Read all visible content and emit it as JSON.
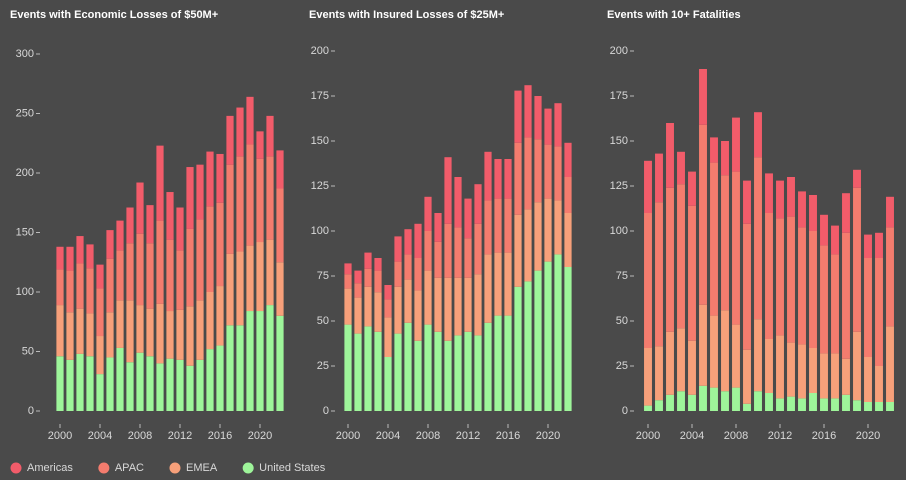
{
  "chart_data": [
    {
      "type": "bar",
      "stacked": true,
      "title": "Events with Economic Losses of $50M+",
      "x": [
        2000,
        2001,
        2002,
        2003,
        2004,
        2005,
        2006,
        2007,
        2008,
        2009,
        2010,
        2011,
        2012,
        2013,
        2014,
        2015,
        2016,
        2017,
        2018,
        2019,
        2020,
        2021,
        2022
      ],
      "xticks": [
        2000,
        2004,
        2008,
        2012,
        2016,
        2020
      ],
      "ylim": [
        0,
        300
      ],
      "yticks": [
        0,
        50,
        100,
        150,
        200,
        250,
        300
      ],
      "series": [
        {
          "name": "United States",
          "color": "#9ef59a",
          "values": [
            46,
            43,
            48,
            46,
            31,
            45,
            53,
            41,
            49,
            46,
            40,
            44,
            43,
            38,
            43,
            52,
            55,
            72,
            72,
            84,
            84,
            89,
            80
          ]
        },
        {
          "name": "EMEA",
          "color": "#f7a07a",
          "values": [
            43,
            40,
            38,
            36,
            32,
            38,
            40,
            52,
            40,
            40,
            50,
            40,
            42,
            50,
            50,
            48,
            50,
            60,
            62,
            55,
            58,
            55,
            45
          ]
        },
        {
          "name": "APAC",
          "color": "#f47c6e",
          "values": [
            30,
            35,
            38,
            38,
            40,
            45,
            42,
            48,
            60,
            55,
            70,
            60,
            50,
            65,
            68,
            72,
            70,
            75,
            80,
            85,
            70,
            70,
            62
          ]
        },
        {
          "name": "Americas",
          "color": "#f25c6a",
          "values": [
            19,
            20,
            23,
            20,
            20,
            24,
            25,
            30,
            43,
            32,
            63,
            40,
            36,
            52,
            46,
            46,
            41,
            41,
            41,
            40,
            23,
            34,
            32
          ]
        }
      ]
    },
    {
      "type": "bar",
      "stacked": true,
      "title": "Events with Insured Losses of $25M+",
      "x": [
        2000,
        2001,
        2002,
        2003,
        2004,
        2005,
        2006,
        2007,
        2008,
        2009,
        2010,
        2011,
        2012,
        2013,
        2014,
        2015,
        2016,
        2017,
        2018,
        2019,
        2020,
        2021,
        2022
      ],
      "xticks": [
        2000,
        2004,
        2008,
        2012,
        2016,
        2020
      ],
      "ylim": [
        0,
        200
      ],
      "yticks": [
        0,
        25,
        50,
        75,
        100,
        125,
        150,
        175,
        200
      ],
      "series": [
        {
          "name": "United States",
          "color": "#9ef59a",
          "values": [
            48,
            43,
            47,
            44,
            30,
            43,
            49,
            39,
            48,
            44,
            39,
            42,
            44,
            42,
            49,
            53,
            53,
            69,
            72,
            78,
            83,
            87,
            80
          ]
        },
        {
          "name": "EMEA",
          "color": "#f7a07a",
          "values": [
            20,
            20,
            22,
            22,
            22,
            26,
            24,
            28,
            30,
            30,
            35,
            32,
            30,
            34,
            38,
            35,
            35,
            40,
            40,
            38,
            35,
            30,
            30
          ]
        },
        {
          "name": "APAC",
          "color": "#f47c6e",
          "values": [
            8,
            8,
            10,
            12,
            10,
            14,
            14,
            18,
            22,
            20,
            30,
            28,
            22,
            28,
            30,
            30,
            30,
            40,
            40,
            35,
            30,
            30,
            20
          ]
        },
        {
          "name": "Americas",
          "color": "#f25c6a",
          "values": [
            6,
            7,
            9,
            7,
            8,
            14,
            14,
            19,
            19,
            16,
            37,
            28,
            22,
            22,
            27,
            22,
            22,
            29,
            29,
            24,
            20,
            24,
            19
          ]
        }
      ]
    },
    {
      "type": "bar",
      "stacked": true,
      "title": "Events with 10+ Fatalities",
      "x": [
        2000,
        2001,
        2002,
        2003,
        2004,
        2005,
        2006,
        2007,
        2008,
        2009,
        2010,
        2011,
        2012,
        2013,
        2014,
        2015,
        2016,
        2017,
        2018,
        2019,
        2020,
        2021,
        2022
      ],
      "xticks": [
        2000,
        2004,
        2008,
        2012,
        2016,
        2020
      ],
      "ylim": [
        0,
        200
      ],
      "yticks": [
        0,
        25,
        50,
        75,
        100,
        125,
        150,
        175,
        200
      ],
      "series": [
        {
          "name": "United States",
          "color": "#9ef59a",
          "values": [
            3,
            6,
            9,
            11,
            9,
            14,
            13,
            11,
            13,
            4,
            11,
            10,
            7,
            8,
            7,
            10,
            7,
            7,
            9,
            6,
            5,
            5,
            5
          ]
        },
        {
          "name": "EMEA",
          "color": "#f7a07a",
          "values": [
            32,
            30,
            35,
            35,
            30,
            45,
            40,
            45,
            35,
            30,
            40,
            30,
            35,
            30,
            30,
            25,
            25,
            25,
            20,
            38,
            25,
            20,
            42
          ]
        },
        {
          "name": "APAC",
          "color": "#f47c6e",
          "values": [
            75,
            80,
            80,
            80,
            75,
            100,
            85,
            75,
            85,
            70,
            90,
            70,
            65,
            70,
            65,
            65,
            60,
            55,
            70,
            80,
            55,
            60,
            55
          ]
        },
        {
          "name": "Americas",
          "color": "#f25c6a",
          "values": [
            29,
            27,
            36,
            18,
            19,
            31,
            14,
            19,
            30,
            24,
            25,
            22,
            21,
            22,
            20,
            20,
            17,
            16,
            22,
            10,
            13,
            14,
            17
          ]
        }
      ]
    }
  ]
}
